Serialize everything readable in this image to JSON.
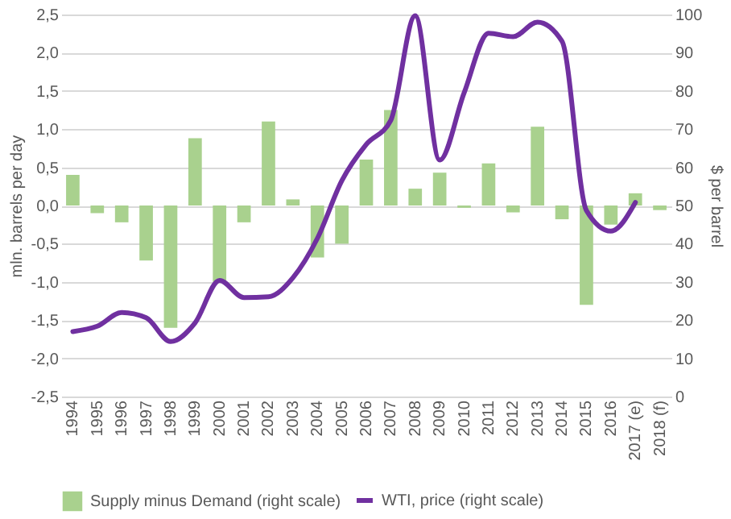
{
  "chart_data": {
    "type": "bar",
    "categories": [
      "1994",
      "1995",
      "1996",
      "1997",
      "1998",
      "1999",
      "2000",
      "2001",
      "2002",
      "2003",
      "2004",
      "2005",
      "2006",
      "2007",
      "2008",
      "2009",
      "2010",
      "2011",
      "2012",
      "2013",
      "2014",
      "2015",
      "2016",
      "2017 (e)",
      "2018 (f)"
    ],
    "ylabel": "mln. barrels per day",
    "y2label": "$ per barrel",
    "ylim": [
      -2.5,
      2.5
    ],
    "yticks": [
      {
        "value": -2.5,
        "label": "-2,5"
      },
      {
        "value": -2.0,
        "label": "-2,0"
      },
      {
        "value": -1.5,
        "label": "-1,5"
      },
      {
        "value": -1.0,
        "label": "-1,0"
      },
      {
        "value": -0.5,
        "label": "-0,5"
      },
      {
        "value": 0,
        "label": "0,0"
      },
      {
        "value": 0.5,
        "label": "0,5"
      },
      {
        "value": 1.0,
        "label": "1,0"
      },
      {
        "value": 1.5,
        "label": "1,5"
      },
      {
        "value": 2.0,
        "label": "2,0"
      },
      {
        "value": 2.5,
        "label": "2,5"
      }
    ],
    "y2lim": [
      0,
      100
    ],
    "y2ticks": [
      0,
      10,
      20,
      30,
      40,
      50,
      60,
      70,
      80,
      90,
      100
    ],
    "series": [
      {
        "name": "Supply minus Demand (right scale)",
        "color": "#a9d18e",
        "values": [
          0.4,
          -0.1,
          -0.22,
          -0.72,
          -1.6,
          0.88,
          -1.0,
          -0.22,
          1.1,
          0.08,
          -0.68,
          -0.5,
          0.6,
          1.25,
          0.22,
          0.43,
          -0.03,
          0.55,
          -0.09,
          1.03,
          -0.18,
          -1.3,
          -0.25,
          0.16,
          -0.06
        ]
      },
      {
        "name": "WTI, price (right scale)",
        "type": "line",
        "axis": "y2",
        "color": "#7030a0",
        "values": [
          17,
          18.4,
          22,
          20.6,
          14.4,
          19.3,
          30.4,
          25.9,
          26.1,
          31.1,
          41.4,
          56.5,
          66,
          72.3,
          99.7,
          61.9,
          79.5,
          95.1,
          94.2,
          98,
          93,
          48.7,
          43.3,
          50.8,
          null
        ]
      }
    ],
    "grid": "y",
    "legend": "bottom",
    "marker": "none",
    "line_style": "solid"
  }
}
